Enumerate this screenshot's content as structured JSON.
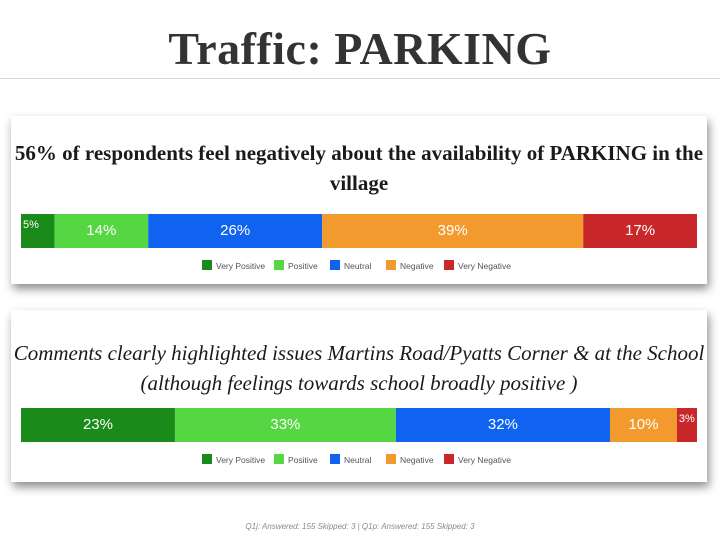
{
  "slide": {
    "title": "Traffic: PARKING",
    "footnote": "Q1j: Answered: 155  Skipped: 3 | Q1p: Answered: 155  Skipped: 3"
  },
  "colors": {
    "very_positive": "#1a8a1a",
    "positive": "#55d642",
    "neutral": "#0f63f0",
    "negative": "#f29a2e",
    "very_negative": "#c9282a"
  },
  "chart_data": [
    {
      "type": "bar",
      "stacked": true,
      "orientation": "horizontal",
      "title": "56% of respondents feel negatively about the availability of PARKING in the village",
      "categories": [
        "Very Positive",
        "Positive",
        "Neutral",
        "Negative",
        "Very Negative"
      ],
      "values": [
        5,
        14,
        26,
        39,
        17
      ],
      "labels": [
        "5%",
        "14%",
        "26%",
        "39%",
        "17%"
      ],
      "legend": "bottom"
    },
    {
      "type": "bar",
      "stacked": true,
      "orientation": "horizontal",
      "title": "Comments clearly highlighted issues Martins Road/Pyatts Corner & at the School (although feelings towards school broadly positive )",
      "categories": [
        "Very Positive",
        "Positive",
        "Neutral",
        "Negative",
        "Very Negative"
      ],
      "values": [
        23,
        33,
        32,
        10,
        3
      ],
      "labels": [
        "23%",
        "33%",
        "32%",
        "10%",
        "3%"
      ],
      "legend": "bottom"
    }
  ]
}
